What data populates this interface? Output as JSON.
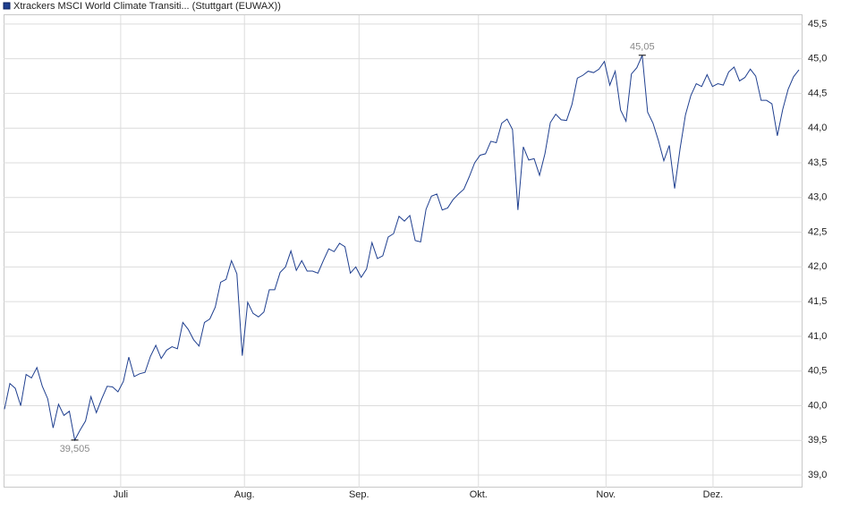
{
  "chart_data": {
    "type": "line",
    "title": "Xtrackers MSCI World Climate Transiti... (Stuttgart (EUWAX))",
    "series": [
      {
        "name": "Xtrackers MSCI World Climate Transiti... (Stuttgart (EUWAX))",
        "color": "#1f3f8f",
        "values": [
          39.95,
          40.32,
          40.25,
          40.0,
          40.45,
          40.4,
          40.55,
          40.28,
          40.1,
          39.68,
          40.02,
          39.86,
          39.92,
          39.505,
          39.65,
          39.78,
          40.13,
          39.9,
          40.1,
          40.28,
          40.27,
          40.2,
          40.35,
          40.7,
          40.42,
          40.46,
          40.48,
          40.71,
          40.87,
          40.68,
          40.8,
          40.85,
          40.82,
          41.2,
          41.1,
          40.95,
          40.86,
          41.2,
          41.25,
          41.42,
          41.78,
          41.82,
          42.09,
          41.9,
          40.72,
          41.49,
          41.33,
          41.28,
          41.35,
          41.67,
          41.67,
          41.92,
          42.0,
          42.23,
          41.95,
          42.09,
          41.94,
          41.94,
          41.91,
          42.09,
          42.26,
          42.22,
          42.34,
          42.29,
          41.91,
          42.0,
          41.85,
          41.97,
          42.35,
          42.12,
          42.16,
          42.43,
          42.48,
          42.73,
          42.66,
          42.74,
          42.38,
          42.36,
          42.83,
          43.02,
          43.05,
          42.82,
          42.85,
          42.97,
          43.05,
          43.12,
          43.3,
          43.5,
          43.61,
          43.63,
          43.81,
          43.79,
          44.07,
          44.13,
          43.98,
          42.82,
          43.73,
          43.54,
          43.56,
          43.32,
          43.63,
          44.08,
          44.2,
          44.12,
          44.11,
          44.34,
          44.72,
          44.76,
          44.82,
          44.8,
          44.85,
          44.96,
          44.62,
          44.82,
          44.26,
          44.1,
          44.78,
          44.87,
          45.05,
          44.23,
          44.07,
          43.82,
          43.53,
          43.75,
          43.13,
          43.7,
          44.19,
          44.47,
          44.64,
          44.6,
          44.77,
          44.6,
          44.64,
          44.62,
          44.81,
          44.88,
          44.68,
          44.73,
          44.85,
          44.75,
          44.4,
          44.4,
          44.35,
          43.89,
          44.27,
          44.56,
          44.74,
          44.84
        ]
      }
    ],
    "xlim": [
      0,
      147
    ],
    "xticks": [
      {
        "value": 21.5,
        "label": "Juli"
      },
      {
        "value": 44.4,
        "label": "Aug."
      },
      {
        "value": 65.6,
        "label": "Sep."
      },
      {
        "value": 87.7,
        "label": "Okt."
      },
      {
        "value": 111.3,
        "label": "Nov."
      },
      {
        "value": 131.1,
        "label": "Dez."
      }
    ],
    "ylim": [
      38.82,
      45.64
    ],
    "yticks": [
      {
        "value": 39,
        "label": "39,0"
      },
      {
        "value": 39.5,
        "label": "39,5"
      },
      {
        "value": 40,
        "label": "40,0"
      },
      {
        "value": 40.5,
        "label": "40,5"
      },
      {
        "value": 41,
        "label": "41,0"
      },
      {
        "value": 41.5,
        "label": "41,5"
      },
      {
        "value": 42,
        "label": "42,0"
      },
      {
        "value": 42.5,
        "label": "42,5"
      },
      {
        "value": 43,
        "label": "43,0"
      },
      {
        "value": 43.5,
        "label": "43,5"
      },
      {
        "value": 44,
        "label": "44,0"
      },
      {
        "value": 44.5,
        "label": "44,5"
      },
      {
        "value": 45,
        "label": "45,0"
      },
      {
        "value": 45.5,
        "label": "45,5"
      }
    ],
    "grid": true,
    "annotations": [
      {
        "x": 118,
        "value": 45.05,
        "label": "45,05"
      },
      {
        "x": 13,
        "value": 39.505,
        "label": "39,505"
      }
    ]
  }
}
